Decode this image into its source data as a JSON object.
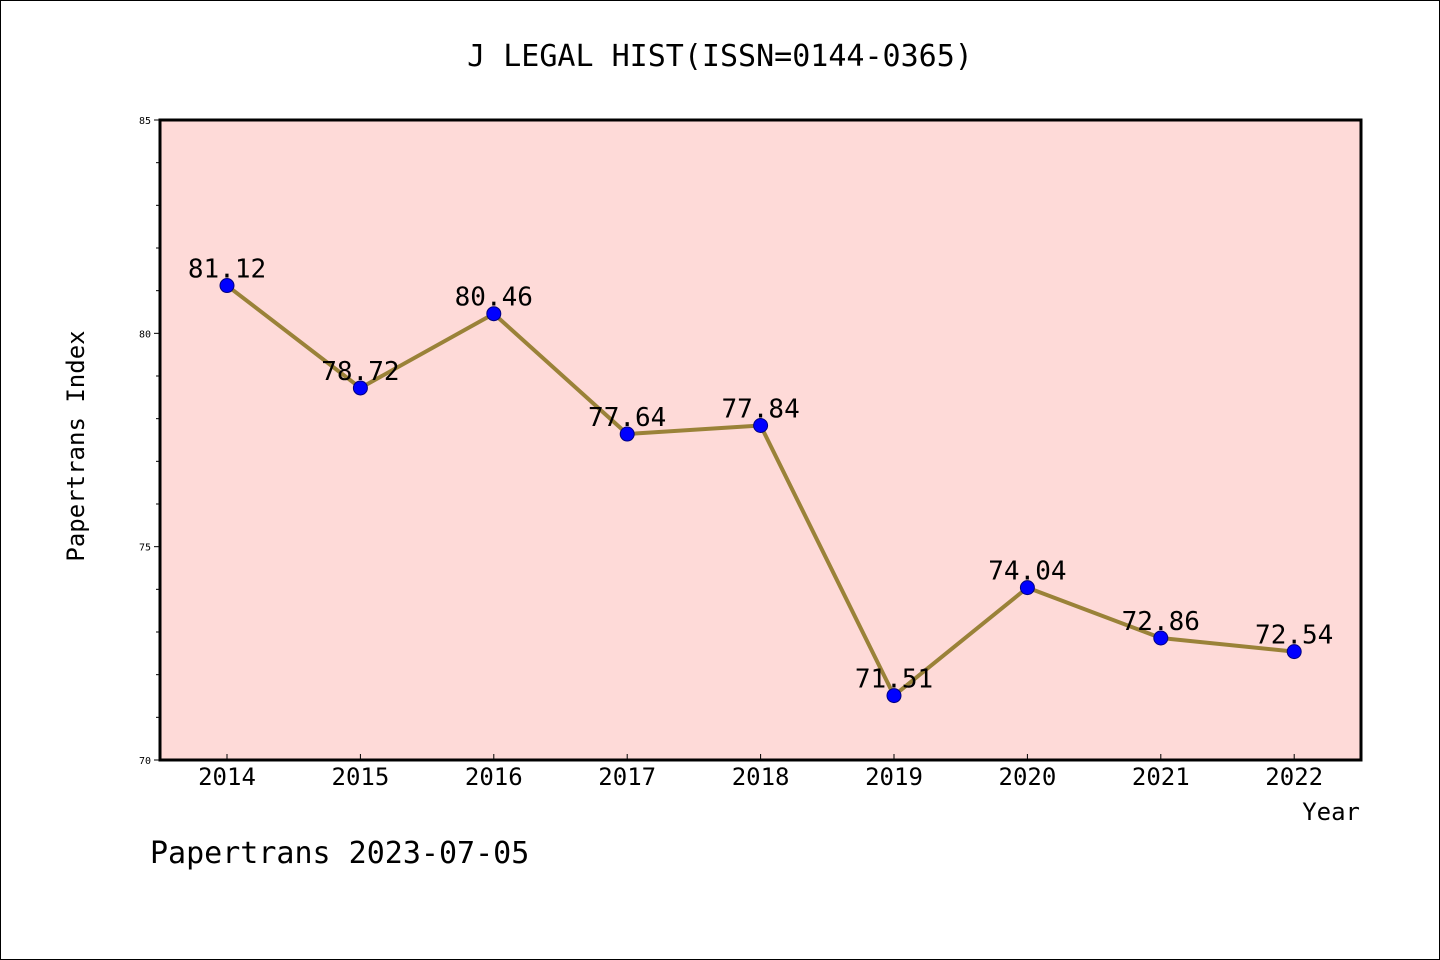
{
  "chart_data": {
    "type": "line",
    "title": "J LEGAL HIST(ISSN=0144-0365)",
    "xlabel": "Year",
    "ylabel": "Papertrans Index",
    "ylim": [
      70,
      85
    ],
    "y_ticks": [
      70,
      75,
      80,
      85
    ],
    "x": [
      "2014",
      "2015",
      "2016",
      "2017",
      "2018",
      "2019",
      "2020",
      "2021",
      "2022"
    ],
    "series": [
      {
        "values": [
          81.12,
          78.72,
          80.46,
          77.64,
          77.84,
          71.51,
          74.04,
          72.86,
          72.54
        ],
        "labels": [
          "81.12",
          "78.72",
          "80.46",
          "77.64",
          "77.84",
          "71.51",
          "74.04",
          "72.86",
          "72.54"
        ]
      }
    ],
    "grid": false,
    "colors": {
      "plot_background": "#fedad8",
      "line": "#9a8238",
      "marker": "#0000ff",
      "marker_edge": "#000080"
    }
  },
  "footer": {
    "text": "Papertrans 2023-07-05"
  }
}
